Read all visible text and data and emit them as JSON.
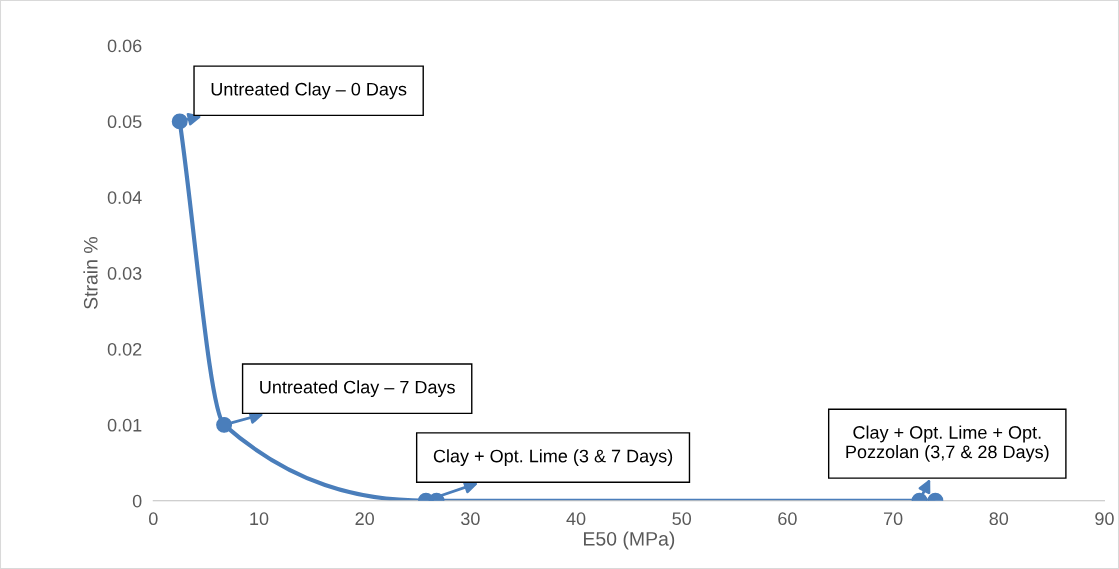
{
  "chart_data": {
    "type": "line",
    "xlabel": "E50 (MPa)",
    "ylabel": "Strain %",
    "x": [
      2.5,
      6.7,
      25.8,
      26.8,
      72.5,
      74
    ],
    "series": [
      {
        "color": "#4a7ebb",
        "values": [
          0.05,
          0.01,
          0,
          0,
          0,
          0
        ]
      }
    ],
    "marker": "circle",
    "line_style": "solid",
    "xlim": [
      0,
      90
    ],
    "xticks": [
      0,
      10,
      20,
      30,
      40,
      50,
      60,
      70,
      80,
      90
    ],
    "ylim": [
      0,
      0.06
    ],
    "yticks": [
      0,
      0.01,
      0.02,
      0.03,
      0.04,
      0.05,
      0.06
    ],
    "grid": false,
    "legend": false,
    "annotations": [
      {
        "text": "Untreated Clay – 0 Days",
        "x": 2.5,
        "y": 0.05
      },
      {
        "text": "Untreated Clay – 7 Days",
        "x": 6.7,
        "y": 0.01
      },
      {
        "text": "Clay + Opt. Lime (3 & 7 Days)",
        "x": 25.8,
        "y": 0
      },
      {
        "text": "Clay + Opt. Lime + Opt.\nPozzolan (3,7 & 28 Days)",
        "x": 72.5,
        "y": 0
      }
    ]
  }
}
